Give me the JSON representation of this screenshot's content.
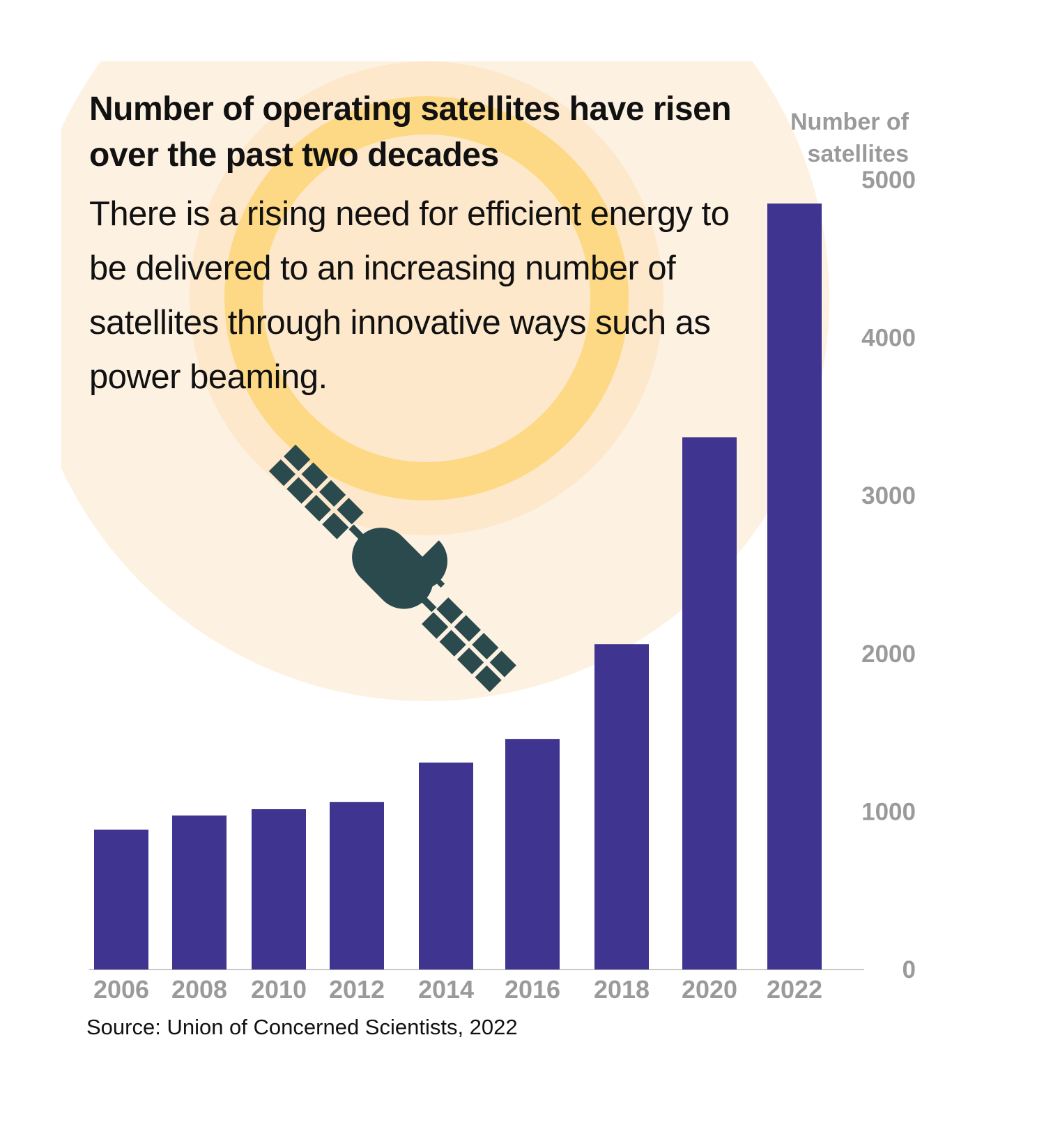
{
  "colors": {
    "bar": "#3f3590",
    "axis_text": "#9a9a9a",
    "satellite": "#2b4a4d",
    "ring_outer": "#fdf1e1",
    "ring_mid": "#fde8cb",
    "ring_yellow": "#fdd985",
    "axis_line": "#c8c8c8"
  },
  "icons": {
    "satellite": "satellite-icon"
  },
  "chart_data": {
    "type": "bar",
    "title": "Number of operating satellites have risen over the past two decades",
    "subtitle": "There is a rising need for efficient energy to be delivered to an increasing number of satellites through innovative ways such as power beaming.",
    "xlabel": "",
    "ylabel": "Number of satellites",
    "ylabel_lines": [
      "Number of",
      "satellites"
    ],
    "categories": [
      "2006",
      "2008",
      "2010",
      "2012",
      "2014",
      "2016",
      "2018",
      "2020",
      "2022"
    ],
    "values": [
      885,
      975,
      1015,
      1060,
      1310,
      1460,
      2060,
      3370,
      4850
    ],
    "ylim": [
      0,
      5000
    ],
    "yticks": [
      0,
      1000,
      2000,
      3000,
      4000,
      5000
    ],
    "y_axis_position": "right",
    "grid": false,
    "legend": "none",
    "source": "Source: Union of Concerned Scientists, 2022"
  }
}
